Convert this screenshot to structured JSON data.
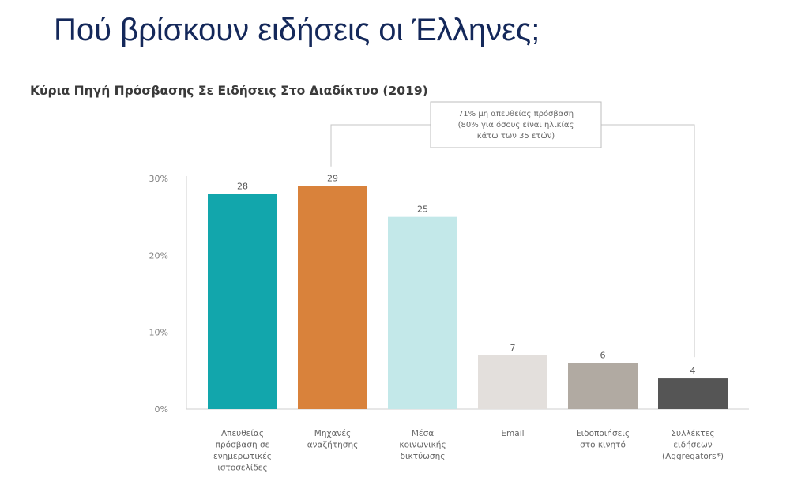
{
  "slide_title": "Πού βρίσκουν ειδήσεις οι Έλληνες;",
  "chart_data": {
    "type": "bar",
    "title": "Κύρια Πηγή Πρόσβασης Σε Ειδήσεις Στο Διαδίκτυο (2019)",
    "categories": [
      [
        "Απευθείας",
        "πρόσβαση σε",
        "ενημερωτικές",
        "ιστοσελίδες"
      ],
      [
        "Μηχανές",
        "αναζήτησης"
      ],
      [
        "Μέσα",
        "κοινωνικής",
        "δικτύωσης"
      ],
      [
        "Email"
      ],
      [
        "Ειδοποιήσεις",
        "στο κινητό"
      ],
      [
        "Συλλέκτες",
        "ειδήσεων",
        "(Aggregators*)"
      ]
    ],
    "values": [
      28,
      29,
      25,
      7,
      6,
      4
    ],
    "value_labels": [
      "28",
      "29",
      "25",
      "7",
      "6",
      "4"
    ],
    "colors": [
      "#12a6ac",
      "#d9823b",
      "#c3e8e9",
      "#e3dfdc",
      "#b1aaa2",
      "#555555"
    ],
    "ylim": [
      0,
      30
    ],
    "yticks": [
      "0%",
      "10%",
      "20%",
      "30%"
    ],
    "annotation": [
      "71% μη απευθείας πρόσβαση",
      "(80% για όσους είναι ηλικίας",
      "κάτω των 35 ετών)"
    ],
    "annotation_spans": [
      1,
      5
    ]
  }
}
